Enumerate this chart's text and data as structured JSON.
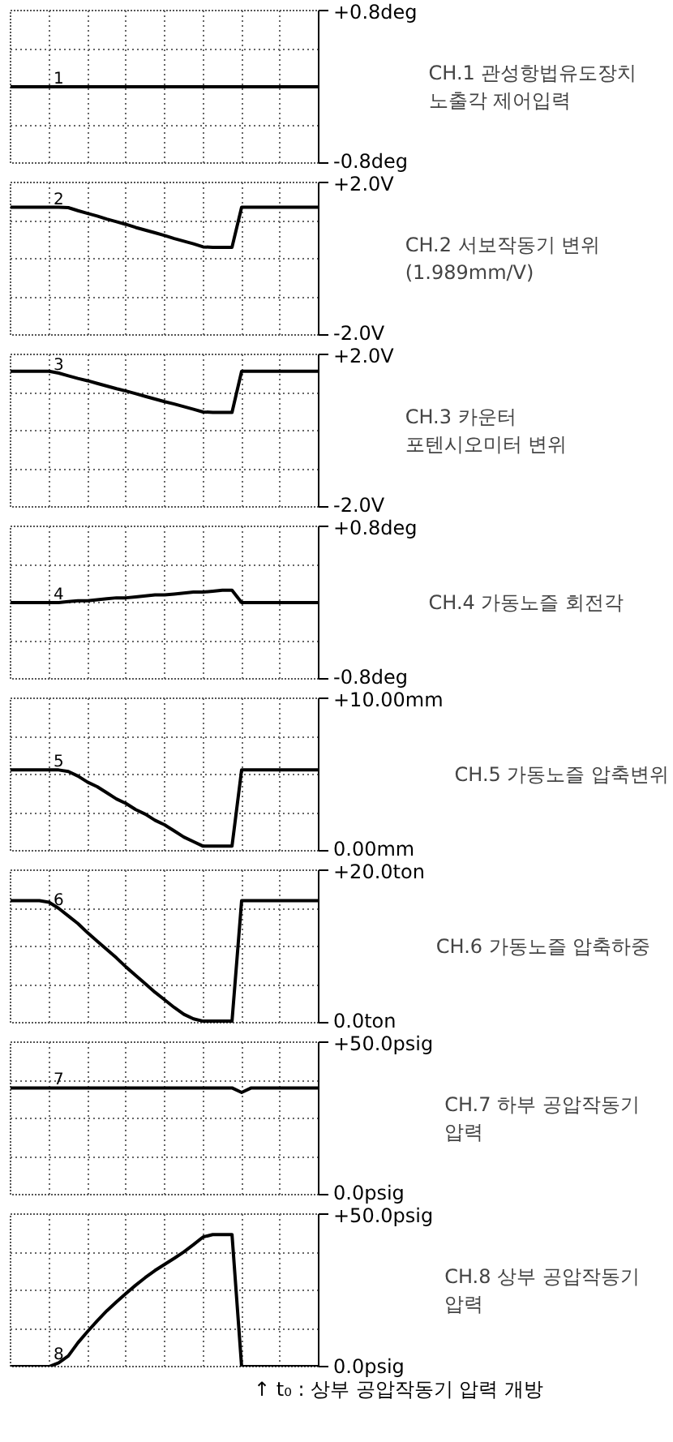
{
  "chart_data": [
    {
      "type": "line",
      "categories": [
        null,
        null,
        null,
        null,
        null,
        null,
        null,
        null,
        null,
        null,
        null,
        null,
        null,
        null,
        null,
        null,
        null,
        null,
        null,
        null,
        null,
        null,
        null,
        null,
        null,
        null,
        null,
        null,
        null,
        null,
        null,
        null,
        null
      ],
      "values": [
        0,
        0,
        0,
        0,
        0,
        0,
        0,
        0,
        0,
        0,
        0,
        0,
        0,
        0,
        0,
        0,
        0,
        0,
        0,
        0,
        0,
        0,
        0,
        0,
        0,
        0,
        0,
        0,
        0,
        0,
        0,
        0,
        0
      ],
      "color": "#000000",
      "ylim": [
        -0.8,
        0.8
      ],
      "yticks": [
        {
          "value": 0.8,
          "label": "+0.8deg"
        },
        {
          "value": -0.8,
          "label": "-0.8deg"
        }
      ],
      "ylabel": "CH.1 관성항법유도장치\n노출각 제어입력",
      "annotations": [
        "1"
      ],
      "grid": true,
      "tick_labels": "y"
    },
    {
      "type": "line",
      "categories": [
        null,
        null,
        null,
        null,
        null,
        null,
        null,
        null,
        null,
        null,
        null,
        null,
        null,
        null,
        null,
        null,
        null,
        null,
        null,
        null,
        null,
        null,
        null,
        null,
        null,
        null,
        null,
        null,
        null,
        null,
        null,
        null,
        null
      ],
      "values": [
        1.35,
        1.35,
        1.35,
        1.35,
        1.35,
        1.35,
        1.34,
        1.26,
        1.19,
        1.12,
        1.04,
        0.97,
        0.9,
        0.82,
        0.75,
        0.68,
        0.61,
        0.53,
        0.46,
        0.39,
        0.31,
        0.3,
        0.3,
        0.3,
        1.35,
        1.35,
        1.35,
        1.35,
        1.35,
        1.35,
        1.35,
        1.35,
        1.35
      ],
      "color": "#000000",
      "ylim": [
        -2.0,
        2.0
      ],
      "yticks": [
        {
          "value": 2.0,
          "label": "+2.0V"
        },
        {
          "value": -2.0,
          "label": "-2.0V"
        }
      ],
      "ylabel": "CH.2 서보작동기 변위\n(1.989mm/V)",
      "annotations": [
        "2"
      ],
      "grid": true,
      "tick_labels": "y"
    },
    {
      "type": "line",
      "categories": [
        null,
        null,
        null,
        null,
        null,
        null,
        null,
        null,
        null,
        null,
        null,
        null,
        null,
        null,
        null,
        null,
        null,
        null,
        null,
        null,
        null,
        null,
        null,
        null,
        null,
        null,
        null,
        null,
        null,
        null,
        null,
        null,
        null
      ],
      "values": [
        1.56,
        1.56,
        1.56,
        1.56,
        1.56,
        1.51,
        1.44,
        1.37,
        1.31,
        1.24,
        1.17,
        1.1,
        1.04,
        0.97,
        0.9,
        0.83,
        0.76,
        0.7,
        0.63,
        0.56,
        0.49,
        0.48,
        0.48,
        0.48,
        1.56,
        1.56,
        1.56,
        1.56,
        1.56,
        1.56,
        1.56,
        1.56,
        1.56
      ],
      "color": "#000000",
      "ylim": [
        -2.0,
        2.0
      ],
      "yticks": [
        {
          "value": 2.0,
          "label": "+2.0V"
        },
        {
          "value": -2.0,
          "label": "-2.0V"
        }
      ],
      "ylabel": "CH.3 카운터\n포텐시오미터 변위",
      "annotations": [
        "3"
      ],
      "grid": true,
      "tick_labels": "y"
    },
    {
      "type": "line",
      "categories": [
        null,
        null,
        null,
        null,
        null,
        null,
        null,
        null,
        null,
        null,
        null,
        null,
        null,
        null,
        null,
        null,
        null,
        null,
        null,
        null,
        null,
        null,
        null,
        null,
        null,
        null,
        null,
        null,
        null,
        null,
        null,
        null,
        null
      ],
      "values": [
        0,
        0,
        0,
        0,
        0,
        0,
        0.01,
        0.02,
        0.02,
        0.03,
        0.04,
        0.05,
        0.05,
        0.06,
        0.07,
        0.08,
        0.08,
        0.09,
        0.1,
        0.11,
        0.11,
        0.12,
        0.13,
        0.13,
        0,
        0,
        0,
        0,
        0,
        0,
        0,
        0,
        0
      ],
      "color": "#000000",
      "ylim": [
        -0.8,
        0.8
      ],
      "yticks": [
        {
          "value": 0.8,
          "label": "+0.8deg"
        },
        {
          "value": -0.8,
          "label": "-0.8deg"
        }
      ],
      "ylabel": "CH.4 가동노즐 회전각",
      "annotations": [
        "4"
      ],
      "grid": true,
      "tick_labels": "y"
    },
    {
      "type": "line",
      "categories": [
        null,
        null,
        null,
        null,
        null,
        null,
        null,
        null,
        null,
        null,
        null,
        null,
        null,
        null,
        null,
        null,
        null,
        null,
        null,
        null,
        null,
        null,
        null,
        null,
        null,
        null,
        null,
        null,
        null,
        null,
        null,
        null,
        null
      ],
      "values": [
        5.3,
        5.3,
        5.3,
        5.3,
        5.3,
        5.3,
        5.2,
        4.9,
        4.5,
        4.2,
        3.8,
        3.4,
        3.1,
        2.7,
        2.4,
        2.0,
        1.7,
        1.3,
        0.9,
        0.6,
        0.3,
        0.3,
        0.3,
        0.3,
        5.3,
        5.3,
        5.3,
        5.3,
        5.3,
        5.3,
        5.3,
        5.3,
        5.3
      ],
      "color": "#000000",
      "ylim": [
        0.0,
        10.0
      ],
      "yticks": [
        {
          "value": 10.0,
          "label": "+10.00mm"
        },
        {
          "value": 0.0,
          "label": "0.00mm"
        }
      ],
      "ylabel": "CH.5 가동노즐 압축변위",
      "annotations": [
        "5"
      ],
      "grid": true,
      "tick_labels": "y"
    },
    {
      "type": "line",
      "categories": [
        null,
        null,
        null,
        null,
        null,
        null,
        null,
        null,
        null,
        null,
        null,
        null,
        null,
        null,
        null,
        null,
        null,
        null,
        null,
        null,
        null,
        null,
        null,
        null,
        null,
        null,
        null,
        null,
        null,
        null,
        null,
        null,
        null
      ],
      "values": [
        16.0,
        16.0,
        16.0,
        16.0,
        15.8,
        15.0,
        14.0,
        13.0,
        11.8,
        10.7,
        9.6,
        8.5,
        7.3,
        6.2,
        5.1,
        4.0,
        3.0,
        2.0,
        1.1,
        0.5,
        0.2,
        0.2,
        0.2,
        0.2,
        16.0,
        16.0,
        16.0,
        16.0,
        16.0,
        16.0,
        16.0,
        16.0,
        16.0
      ],
      "color": "#000000",
      "ylim": [
        0.0,
        20.0
      ],
      "yticks": [
        {
          "value": 20.0,
          "label": "+20.0ton"
        },
        {
          "value": 0.0,
          "label": "0.0ton"
        }
      ],
      "ylabel": "CH.6 가동노즐 압축하중",
      "annotations": [
        "6"
      ],
      "grid": true,
      "tick_labels": "y"
    },
    {
      "type": "line",
      "categories": [
        null,
        null,
        null,
        null,
        null,
        null,
        null,
        null,
        null,
        null,
        null,
        null,
        null,
        null,
        null,
        null,
        null,
        null,
        null,
        null,
        null,
        null,
        null,
        null,
        null,
        null,
        null,
        null,
        null,
        null,
        null,
        null,
        null
      ],
      "values": [
        35,
        35,
        35,
        35,
        35,
        35,
        35,
        35,
        35,
        35,
        35,
        35,
        35,
        35,
        35,
        35,
        35,
        35,
        35,
        35,
        35,
        35,
        35,
        35,
        33.5,
        35,
        35,
        35,
        35,
        35,
        35,
        35,
        35
      ],
      "color": "#000000",
      "ylim": [
        0.0,
        50.0
      ],
      "yticks": [
        {
          "value": 50.0,
          "label": "+50.0psig"
        },
        {
          "value": 0.0,
          "label": "0.0psig"
        }
      ],
      "ylabel": "CH.7 하부 공압작동기\n압력",
      "annotations": [
        "7"
      ],
      "grid": true,
      "tick_labels": "y"
    },
    {
      "type": "line",
      "categories": [
        null,
        null,
        null,
        null,
        null,
        null,
        null,
        null,
        null,
        null,
        null,
        null,
        null,
        null,
        null,
        null,
        null,
        null,
        null,
        null,
        null,
        null,
        null,
        null,
        null,
        null,
        null,
        null,
        null,
        null,
        null,
        null,
        null
      ],
      "values": [
        0,
        0,
        0,
        0,
        0,
        1.2,
        3.5,
        7.8,
        11.5,
        15.0,
        18.3,
        21.2,
        24.0,
        26.7,
        29.2,
        31.5,
        33.5,
        35.5,
        37.6,
        40.0,
        42.5,
        43.3,
        43.3,
        43.3,
        0,
        0,
        0,
        0,
        0,
        0,
        0,
        0,
        0
      ],
      "color": "#000000",
      "ylim": [
        0.0,
        50.0
      ],
      "yticks": [
        {
          "value": 50.0,
          "label": "+50.0psig"
        },
        {
          "value": 0.0,
          "label": "0.0psig"
        }
      ],
      "ylabel": "CH.8 상부 공압작동기\n압력",
      "annotations": [
        "8",
        "↑ t₀ : 상부 공압작동기 압력 개방"
      ],
      "grid": true,
      "tick_labels": "y"
    }
  ]
}
